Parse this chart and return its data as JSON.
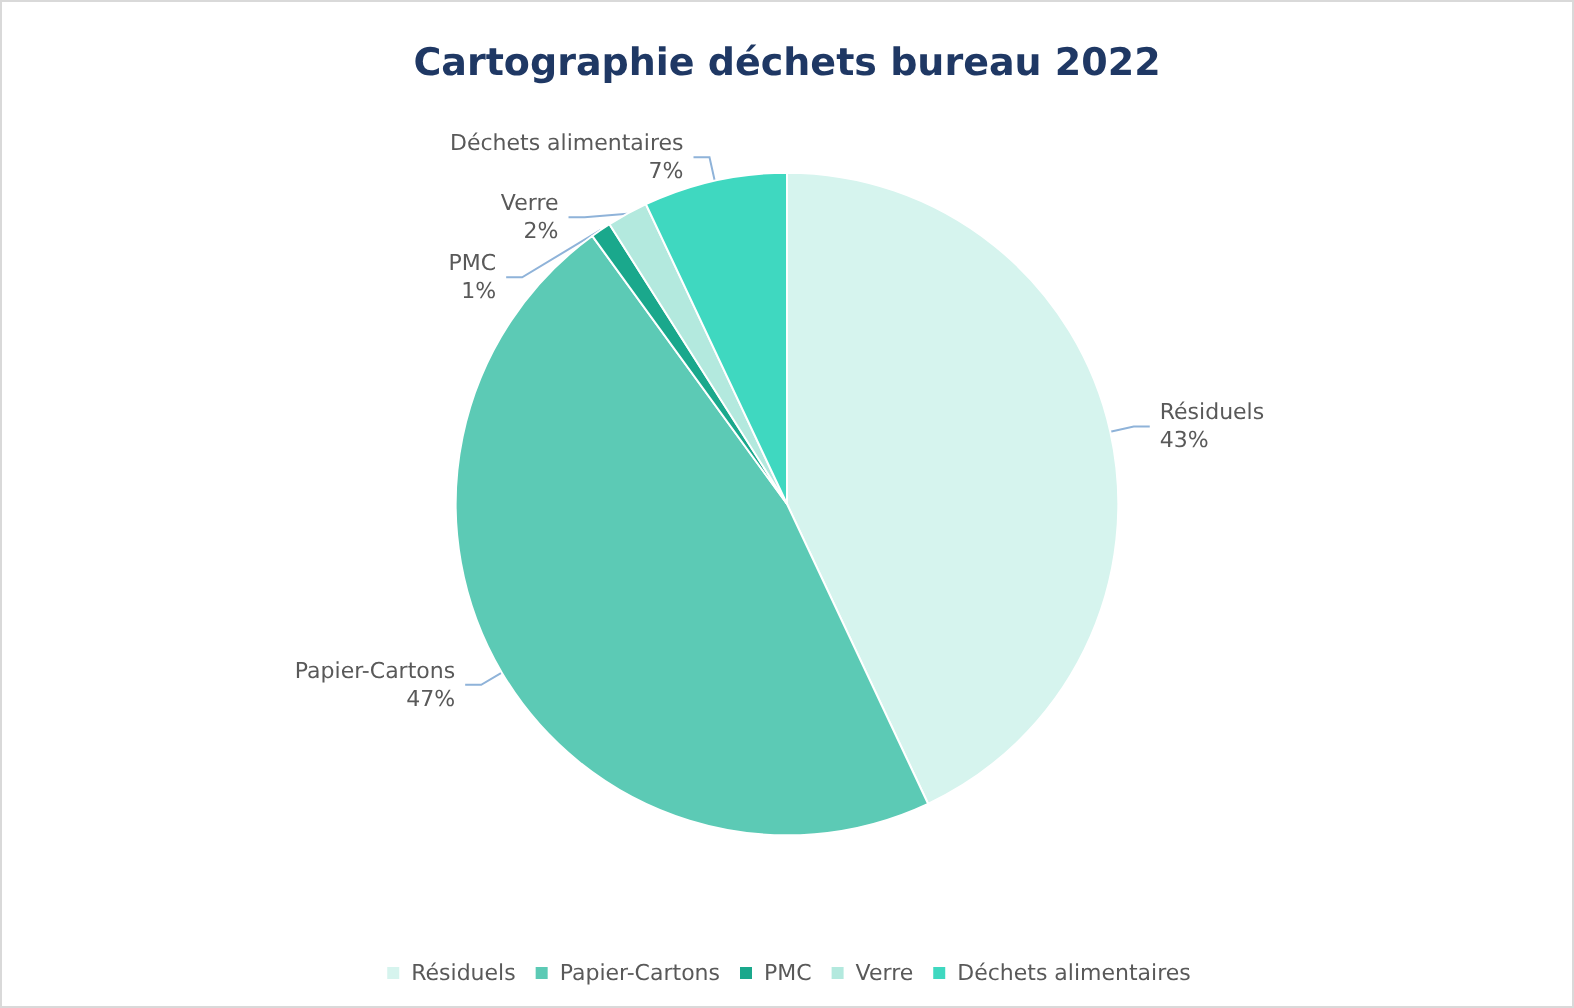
{
  "chart_data": {
    "type": "pie",
    "title": "Cartographie déchets bureau 2022",
    "categories": [
      "Résiduels",
      "Papier-Cartons",
      "PMC",
      "Verre",
      "Déchets alimentaires"
    ],
    "values": [
      43,
      47,
      1,
      2,
      7
    ],
    "value_labels": [
      "43%",
      "47%",
      "1%",
      "2%",
      "7%"
    ],
    "colors": [
      "#d6f4ee",
      "#5ccab5",
      "#1aa88c",
      "#b3e9de",
      "#3fd8c0"
    ],
    "legend": "bottom"
  }
}
